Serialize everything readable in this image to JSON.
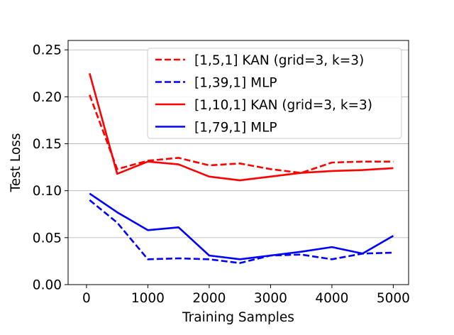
{
  "chart_data": {
    "type": "line",
    "title": "",
    "xlabel": "Training Samples",
    "ylabel": "Test Loss",
    "xlim": [
      -300,
      5250
    ],
    "ylim": [
      0.0,
      0.26
    ],
    "xticks": [
      0,
      1000,
      2000,
      3000,
      4000,
      5000
    ],
    "xtick_labels": [
      "0",
      "1000",
      "2000",
      "3000",
      "4000",
      "5000"
    ],
    "yticks": [
      0.0,
      0.05,
      0.1,
      0.15,
      0.2,
      0.25
    ],
    "ytick_labels": [
      "0.00",
      "0.05",
      "0.10",
      "0.15",
      "0.20",
      "0.25"
    ],
    "grid": "y-major",
    "legend_position": "upper-right",
    "series": [
      {
        "name": "[1,5,1] KAN (grid=3, k=3)",
        "color": "#ff0000",
        "style": "dashed",
        "x": [
          50,
          500,
          1000,
          1500,
          2000,
          2500,
          3000,
          3500,
          4000,
          4500,
          5000
        ],
        "y": [
          0.202,
          0.123,
          0.132,
          0.135,
          0.127,
          0.129,
          0.123,
          0.119,
          0.13,
          0.131,
          0.131
        ]
      },
      {
        "name": "[1,39,1] MLP",
        "color": "#0000ff",
        "style": "dashed",
        "x": [
          50,
          500,
          1000,
          1500,
          2000,
          2500,
          3000,
          3500,
          4000,
          4500,
          5000
        ],
        "y": [
          0.09,
          0.066,
          0.027,
          0.028,
          0.027,
          0.023,
          0.031,
          0.032,
          0.027,
          0.033,
          0.034
        ]
      },
      {
        "name": "[1,10,1] KAN (grid=3, k=3)",
        "color": "#ff0000",
        "style": "solid",
        "x": [
          50,
          500,
          1000,
          1500,
          2000,
          2500,
          3000,
          3500,
          4000,
          4500,
          5000
        ],
        "y": [
          0.225,
          0.118,
          0.131,
          0.128,
          0.115,
          0.111,
          0.115,
          0.119,
          0.121,
          0.122,
          0.124
        ]
      },
      {
        "name": "[1,79,1] MLP",
        "color": "#0000ff",
        "style": "solid",
        "x": [
          50,
          500,
          1000,
          1500,
          2000,
          2500,
          3000,
          3500,
          4000,
          4500,
          5000
        ],
        "y": [
          0.097,
          0.077,
          0.058,
          0.061,
          0.031,
          0.027,
          0.031,
          0.035,
          0.04,
          0.033,
          0.052
        ]
      }
    ]
  }
}
